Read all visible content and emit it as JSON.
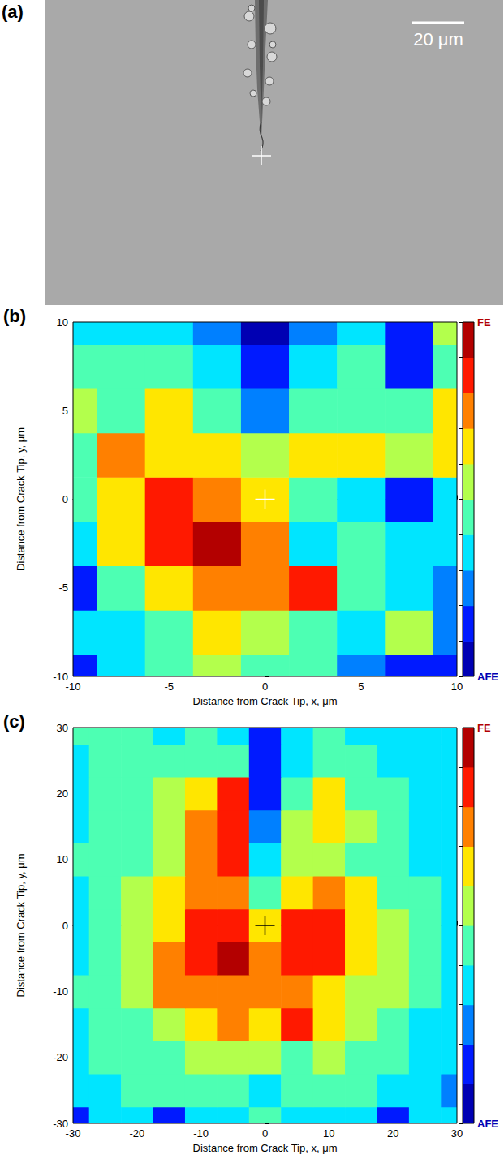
{
  "image_panel": {
    "label": "(a)",
    "scale_bar": {
      "label": "20 μm"
    },
    "marker": "cross"
  },
  "chart_data": [
    {
      "type": "contour",
      "label": "(b)",
      "x_label": "Distance from Crack Tip, x, μm",
      "y_label": "Distance from Crack Tip, y, μm",
      "x": [
        -10,
        -7.5,
        -5,
        -2.5,
        0,
        2.5,
        5,
        7.5,
        10
      ],
      "y": [
        -10,
        -7.5,
        -5,
        -2.5,
        0,
        2.5,
        5,
        7.5,
        10
      ],
      "z": [
        [
          0.15,
          0.35,
          0.45,
          0.55,
          0.45,
          0.45,
          0.25,
          0.15,
          0.15
        ],
        [
          0.35,
          0.35,
          0.45,
          0.65,
          0.55,
          0.45,
          0.35,
          0.55,
          0.25
        ],
        [
          0.15,
          0.45,
          0.65,
          0.75,
          0.75,
          0.85,
          0.45,
          0.35,
          0.25
        ],
        [
          0.35,
          0.65,
          0.85,
          0.95,
          0.75,
          0.35,
          0.45,
          0.35,
          0.35
        ],
        [
          0.45,
          0.65,
          0.85,
          0.75,
          0.65,
          0.45,
          0.35,
          0.15,
          0.35
        ],
        [
          0.45,
          0.75,
          0.65,
          0.65,
          0.55,
          0.65,
          0.65,
          0.55,
          0.65
        ],
        [
          0.55,
          0.45,
          0.65,
          0.45,
          0.25,
          0.45,
          0.45,
          0.45,
          0.65
        ],
        [
          0.45,
          0.45,
          0.45,
          0.35,
          0.1,
          0.35,
          0.45,
          0.15,
          0.45
        ],
        [
          0.35,
          0.35,
          0.3,
          0.25,
          0.05,
          0.25,
          0.35,
          0.15,
          0.55
        ]
      ],
      "xlim": [
        -10,
        10
      ],
      "ylim": [
        -10,
        10
      ],
      "xticks": [
        -10,
        -5,
        0,
        5,
        10
      ],
      "yticks": [
        -10,
        -5,
        0,
        5,
        10
      ],
      "colorbar": {
        "range": [
          0,
          1
        ],
        "levels": [
          0,
          0.1,
          0.2,
          0.3,
          0.4,
          0.5,
          0.6,
          0.7,
          0.8,
          0.9,
          1
        ],
        "ticks": [
          {
            "value": 0,
            "label": "AFE"
          },
          {
            "value": 1,
            "label": "FE"
          }
        ]
      },
      "crack_tip": {
        "x": 0,
        "y": 0,
        "marker": "cross",
        "color": "#ffffff"
      }
    },
    {
      "type": "contour",
      "label": "(c)",
      "x_label": "Distance from Crack Tip, x, μm",
      "y_label": "Distance from Crack Tip, y, μm",
      "x": [
        -30,
        -25,
        -20,
        -15,
        -10,
        -5,
        0,
        5,
        10,
        15,
        20,
        25,
        30
      ],
      "y": [
        -30,
        -25,
        -20,
        -15,
        -10,
        -5,
        0,
        5,
        10,
        15,
        20,
        25,
        30
      ],
      "z": [
        [
          0.15,
          0.35,
          0.35,
          0.15,
          0.35,
          0.35,
          0.45,
          0.35,
          0.35,
          0.35,
          0.15,
          0.35,
          0.35
        ],
        [
          0.35,
          0.35,
          0.45,
          0.45,
          0.45,
          0.45,
          0.35,
          0.45,
          0.45,
          0.45,
          0.35,
          0.35,
          0.25
        ],
        [
          0.35,
          0.45,
          0.45,
          0.45,
          0.55,
          0.55,
          0.55,
          0.45,
          0.55,
          0.45,
          0.45,
          0.35,
          0.35
        ],
        [
          0.35,
          0.45,
          0.45,
          0.55,
          0.65,
          0.75,
          0.65,
          0.85,
          0.65,
          0.55,
          0.45,
          0.35,
          0.35
        ],
        [
          0.45,
          0.45,
          0.55,
          0.75,
          0.75,
          0.75,
          0.75,
          0.75,
          0.65,
          0.55,
          0.55,
          0.45,
          0.35
        ],
        [
          0.35,
          0.45,
          0.55,
          0.75,
          0.85,
          0.95,
          0.75,
          0.85,
          0.85,
          0.65,
          0.55,
          0.45,
          0.35
        ],
        [
          0.35,
          0.45,
          0.55,
          0.65,
          0.85,
          0.85,
          0.65,
          0.85,
          0.85,
          0.65,
          0.55,
          0.45,
          0.35
        ],
        [
          0.35,
          0.45,
          0.55,
          0.65,
          0.75,
          0.75,
          0.45,
          0.65,
          0.75,
          0.65,
          0.45,
          0.45,
          0.35
        ],
        [
          0.45,
          0.45,
          0.45,
          0.55,
          0.75,
          0.85,
          0.35,
          0.55,
          0.55,
          0.45,
          0.45,
          0.35,
          0.35
        ],
        [
          0.35,
          0.45,
          0.45,
          0.55,
          0.75,
          0.85,
          0.25,
          0.55,
          0.65,
          0.55,
          0.45,
          0.35,
          0.35
        ],
        [
          0.35,
          0.45,
          0.45,
          0.55,
          0.65,
          0.85,
          0.15,
          0.45,
          0.65,
          0.45,
          0.45,
          0.35,
          0.35
        ],
        [
          0.35,
          0.45,
          0.45,
          0.45,
          0.45,
          0.45,
          0.1,
          0.35,
          0.45,
          0.45,
          0.35,
          0.35,
          0.35
        ],
        [
          0.45,
          0.45,
          0.45,
          0.35,
          0.45,
          0.35,
          0.1,
          0.35,
          0.45,
          0.35,
          0.35,
          0.35,
          0.35
        ]
      ],
      "xlim": [
        -30,
        30
      ],
      "ylim": [
        -30,
        30
      ],
      "xticks": [
        -30,
        -20,
        -10,
        0,
        10,
        20,
        30
      ],
      "yticks": [
        -30,
        -20,
        -10,
        0,
        10,
        20,
        30
      ],
      "colorbar": {
        "range": [
          0,
          1
        ],
        "levels": [
          0,
          0.1,
          0.2,
          0.3,
          0.4,
          0.5,
          0.6,
          0.7,
          0.8,
          0.9,
          1
        ],
        "ticks": [
          {
            "value": 0,
            "label": "AFE"
          },
          {
            "value": 1,
            "label": "FE"
          }
        ]
      },
      "crack_tip": {
        "x": 0,
        "y": 0,
        "marker": "cross",
        "color": "#000000"
      }
    }
  ]
}
